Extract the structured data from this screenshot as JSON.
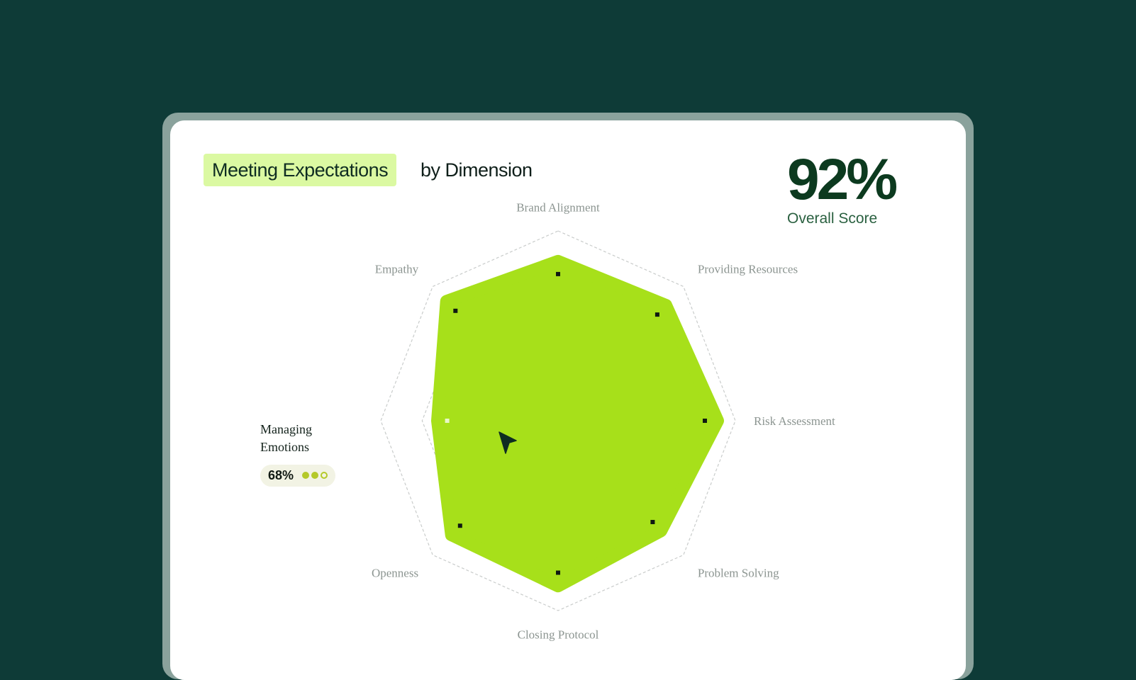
{
  "header": {
    "highlight": "Meeting Expectations",
    "rest": "by Dimension"
  },
  "score": {
    "value": "92%",
    "label": "Overall Score"
  },
  "tooltip": {
    "dimension": "Managing Emotions",
    "value": "68%",
    "dots_filled": 2,
    "dots_total": 3
  },
  "colors": {
    "background": "#0e3b37",
    "fill": "#a7e01a",
    "highlight": "#dbf9a2",
    "score": "#0c3a1f"
  },
  "chart_data": {
    "type": "radar",
    "axes": [
      "Brand Alignment",
      "Providing Resources",
      "Risk Assessment",
      "Problem Solving",
      "Closing Protocol",
      "Openness",
      "Managing Emotions",
      "Empathy"
    ],
    "values": [
      84,
      86,
      90,
      82,
      87,
      85,
      68,
      89
    ],
    "rings": 3,
    "range": [
      0,
      100
    ]
  }
}
